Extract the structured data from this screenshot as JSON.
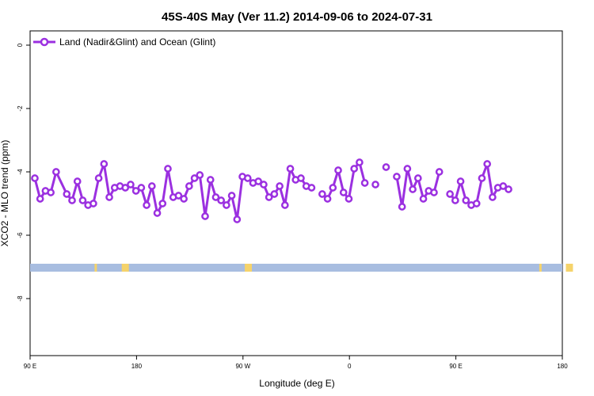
{
  "chart_data": {
    "type": "line",
    "title": "45S-40S May (Ver 11.2)   2014-09-06 to 2024-07-31",
    "xlabel": "Longitude (deg E)",
    "ylabel": "XCO2 - MLO trend (ppm)",
    "x_ticks": [
      {
        "value": 90,
        "label": "90 E"
      },
      {
        "value": 180,
        "label": "180"
      },
      {
        "value": 270,
        "label": "90 W"
      },
      {
        "value": 360,
        "label": "0"
      },
      {
        "value": 450,
        "label": "90 E"
      },
      {
        "value": 540,
        "label": "180"
      }
    ],
    "y_ticks": [
      {
        "value": 0,
        "label": "0"
      },
      {
        "value": -2,
        "label": "-2"
      },
      {
        "value": -4,
        "label": "-4"
      },
      {
        "value": -6,
        "label": "-6"
      },
      {
        "value": -8,
        "label": "-8"
      }
    ],
    "xlim": [
      90,
      540
    ],
    "ylim": [
      -9.8,
      0.45
    ],
    "grid": false,
    "legend_position": "top-left",
    "series": [
      {
        "name": "Land (Nadir&Glint) and Ocean (Glint)",
        "color": "#9b30e0",
        "points": [
          [
            94,
            -4.2
          ],
          [
            98.5,
            -4.85
          ],
          [
            103,
            -4.6
          ],
          [
            107.5,
            -4.65
          ],
          [
            112,
            -4.0
          ],
          [
            121,
            -4.7
          ],
          [
            125.5,
            -4.9
          ],
          [
            130,
            -4.3
          ],
          [
            134.5,
            -4.9
          ],
          [
            139,
            -5.05
          ],
          [
            143.5,
            -5.0
          ],
          [
            148,
            -4.2
          ],
          [
            152.5,
            -3.75
          ],
          [
            157,
            -4.8
          ],
          [
            161.5,
            -4.5
          ],
          [
            166,
            -4.45
          ],
          [
            170.5,
            -4.5
          ],
          [
            175,
            -4.4
          ],
          [
            179.5,
            -4.6
          ],
          [
            184,
            -4.5
          ],
          [
            188.5,
            -5.05
          ],
          [
            193,
            -4.45
          ],
          [
            197.5,
            -5.3
          ],
          [
            202,
            -5.0
          ],
          [
            206.5,
            -3.9
          ],
          [
            211,
            -4.8
          ],
          [
            215.5,
            -4.75
          ],
          [
            220,
            -4.85
          ],
          [
            224.5,
            -4.45
          ],
          [
            229,
            -4.2
          ],
          [
            233.5,
            -4.1
          ],
          [
            238,
            -5.4
          ],
          [
            242.5,
            -4.25
          ],
          [
            247,
            -4.8
          ],
          [
            251.5,
            -4.9
          ],
          [
            256,
            -5.05
          ],
          [
            260.5,
            -4.75
          ],
          [
            265,
            -5.5
          ],
          [
            269.5,
            -4.15
          ],
          [
            274,
            -4.2
          ],
          [
            278.5,
            -4.35
          ],
          [
            283,
            -4.3
          ],
          [
            287.5,
            -4.4
          ],
          [
            292,
            -4.8
          ],
          [
            296.5,
            -4.7
          ],
          [
            301,
            -4.45
          ],
          [
            305.5,
            -5.05
          ],
          [
            310,
            -3.9
          ],
          [
            314.5,
            -4.25
          ],
          [
            319,
            -4.2
          ],
          [
            323.5,
            -4.45
          ],
          [
            328,
            -4.5
          ]
        ],
        "points_b": [
          [
            337,
            -4.7
          ],
          [
            341.5,
            -4.85
          ],
          [
            346,
            -4.5
          ],
          [
            350.5,
            -3.95
          ],
          [
            355,
            -4.65
          ],
          [
            359.5,
            -4.85
          ],
          [
            364,
            -3.9
          ],
          [
            368.5,
            -3.7
          ],
          [
            373,
            -4.35
          ]
        ],
        "points_c": [
          [
            382,
            -4.4
          ]
        ],
        "points_d": [
          [
            391,
            -3.85
          ]
        ],
        "points_e": [
          [
            400,
            -4.15
          ],
          [
            404.5,
            -5.1
          ],
          [
            409,
            -3.9
          ],
          [
            413.5,
            -4.55
          ],
          [
            418,
            -4.2
          ],
          [
            422.5,
            -4.85
          ],
          [
            427,
            -4.6
          ],
          [
            431.5,
            -4.65
          ],
          [
            436,
            -4.0
          ]
        ],
        "points_f": [
          [
            445,
            -4.7
          ],
          [
            449.5,
            -4.9
          ],
          [
            454,
            -4.3
          ],
          [
            458.5,
            -4.9
          ],
          [
            463,
            -5.05
          ],
          [
            467.5,
            -5.0
          ],
          [
            472,
            -4.2
          ],
          [
            476.5,
            -3.75
          ],
          [
            481,
            -4.8
          ],
          [
            485.5,
            -4.5
          ],
          [
            490,
            -4.45
          ],
          [
            494.5,
            -4.55
          ]
        ]
      }
    ],
    "band": {
      "y_from": -6.9,
      "y_to": -7.15,
      "ocean_color": "#a8bde0",
      "land_color": "#f5d36b",
      "land_segments": [
        [
          144.5,
          146.5
        ],
        [
          167.5,
          173.5
        ],
        [
          271.5,
          277.5
        ],
        [
          520.5,
          522.5
        ],
        [
          543,
          549
        ]
      ]
    }
  }
}
